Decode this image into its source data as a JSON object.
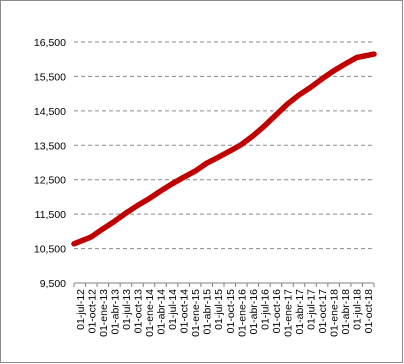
{
  "chart_data": {
    "type": "line",
    "title": "",
    "xlabel": "",
    "ylabel": "",
    "ylim": [
      9500,
      16500
    ],
    "yticks": [
      9500,
      10500,
      11500,
      12500,
      13500,
      14500,
      15500,
      16500
    ],
    "ytick_labels": [
      "9,500",
      "10,500",
      "11,500",
      "12,500",
      "13,500",
      "14,500",
      "15,500",
      "16,500"
    ],
    "grid": "horizontal dashed",
    "legend": "none",
    "categories": [
      "01-jul-12",
      "01-oct-12",
      "01-ene-13",
      "01-abr-13",
      "01-jul-13",
      "01-oct-13",
      "01-ene-14",
      "01-abr-14",
      "01-jul-14",
      "01-oct-14",
      "01-ene-15",
      "01-abr-15",
      "01-jul-15",
      "01-oct-15",
      "01-ene-16",
      "01-abr-16",
      "01-jul-16",
      "01-oct-16",
      "01-ene-17",
      "01-abr-17",
      "01-jul-17",
      "01-oct-17",
      "01-ene-18",
      "01-abr-18",
      "01-jul-18",
      "01-oct-18"
    ],
    "series": [
      {
        "color": "#c00000",
        "values": [
          10640,
          10840,
          11070,
          11290,
          11530,
          11750,
          11950,
          12170,
          12380,
          12570,
          12750,
          12980,
          13150,
          13330,
          13520,
          13770,
          14060,
          14380,
          14700,
          14960,
          15180,
          15430,
          15660,
          15860,
          16050,
          16150
        ]
      }
    ]
  }
}
